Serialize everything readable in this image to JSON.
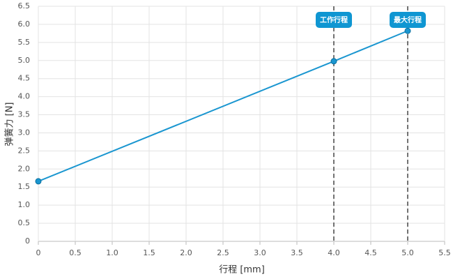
{
  "chart_data": {
    "type": "line",
    "x": [
      0,
      4,
      5
    ],
    "series": [
      {
        "name": "弹簧力",
        "color": "#1a96d0",
        "values": [
          1.66,
          4.98,
          5.82
        ]
      }
    ],
    "xlim": [
      0,
      5.5
    ],
    "ylim": [
      0,
      6.5
    ],
    "xticks": [
      0,
      0.5,
      {
        "value": 1,
        "label": "1.0"
      },
      1.5,
      {
        "value": 2,
        "label": "2.0"
      },
      2.5,
      {
        "value": 3,
        "label": "3.0"
      },
      3.5,
      {
        "value": 4,
        "label": "4.0"
      },
      4.5,
      {
        "value": 5,
        "label": "5.0"
      },
      5.5
    ],
    "yticks": [
      0,
      0.5,
      {
        "value": 1,
        "label": "1.0"
      },
      1.5,
      {
        "value": 2,
        "label": "2.0"
      },
      2.5,
      {
        "value": 3,
        "label": "3.0"
      },
      3.5,
      {
        "value": 4,
        "label": "4.0"
      },
      4.5,
      {
        "value": 5,
        "label": "5.0"
      },
      5.5,
      {
        "value": 6,
        "label": "6.0"
      },
      6.5
    ],
    "x_label": "行程 [mm]",
    "y_label": "弹簧力 [N]",
    "grid": true,
    "markers": [
      {
        "x": 4,
        "label": "工作行程",
        "color": "#0f96d2"
      },
      {
        "x": 5,
        "label": "最大行程",
        "color": "#0f96d2"
      }
    ]
  }
}
